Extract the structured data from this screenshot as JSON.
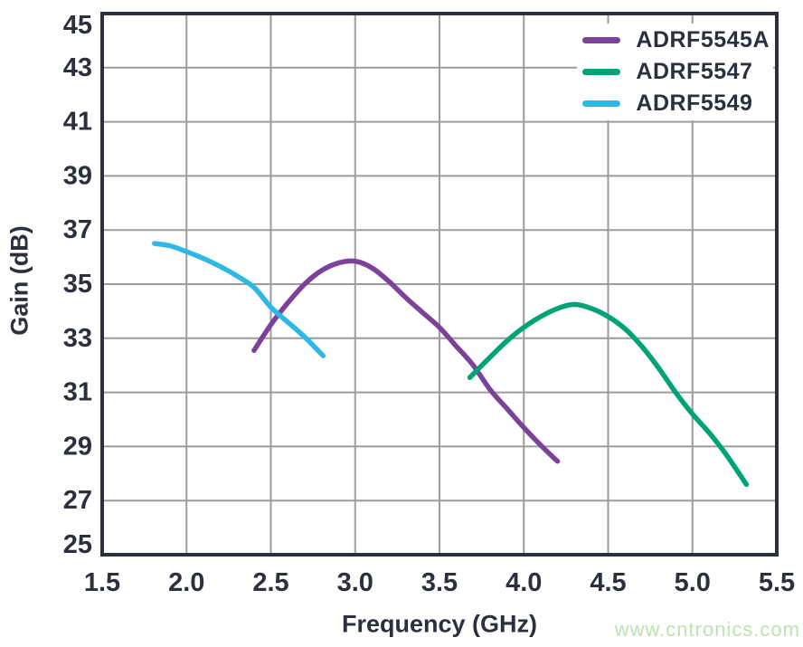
{
  "chart_data": {
    "type": "line",
    "xlabel": "Frequency (GHz)",
    "ylabel": "Gain (dB)",
    "xlim": [
      1.5,
      5.5
    ],
    "ylim": [
      25,
      45
    ],
    "xtick_labels": [
      "1.5",
      "2.0",
      "2.5",
      "3.0",
      "3.5",
      "4.0",
      "4.5",
      "5.0",
      "5.5"
    ],
    "ytick_labels": [
      "25",
      "27",
      "29",
      "31",
      "33",
      "35",
      "37",
      "39",
      "41",
      "43",
      "45"
    ],
    "grid": true,
    "legend_position": "top-right",
    "series": [
      {
        "name": "ADRF5545A",
        "color": "#7c4199",
        "points": [
          [
            2.4,
            32.55
          ],
          [
            2.5,
            33.5
          ],
          [
            2.6,
            34.3
          ],
          [
            2.7,
            35.0
          ],
          [
            2.8,
            35.5
          ],
          [
            2.9,
            35.78
          ],
          [
            3.0,
            35.85
          ],
          [
            3.1,
            35.6
          ],
          [
            3.2,
            35.1
          ],
          [
            3.3,
            34.5
          ],
          [
            3.4,
            33.95
          ],
          [
            3.5,
            33.4
          ],
          [
            3.6,
            32.7
          ],
          [
            3.7,
            32.0
          ],
          [
            3.8,
            31.1
          ],
          [
            3.9,
            30.4
          ],
          [
            4.0,
            29.7
          ],
          [
            4.1,
            29.05
          ],
          [
            4.2,
            28.45
          ]
        ]
      },
      {
        "name": "ADRF5547",
        "color": "#00a376",
        "points": [
          [
            3.68,
            31.55
          ],
          [
            3.8,
            32.3
          ],
          [
            3.9,
            32.9
          ],
          [
            4.0,
            33.4
          ],
          [
            4.1,
            33.8
          ],
          [
            4.2,
            34.1
          ],
          [
            4.3,
            34.25
          ],
          [
            4.4,
            34.1
          ],
          [
            4.5,
            33.8
          ],
          [
            4.6,
            33.35
          ],
          [
            4.7,
            32.7
          ],
          [
            4.8,
            31.9
          ],
          [
            4.9,
            31.0
          ],
          [
            5.0,
            30.2
          ],
          [
            5.1,
            29.5
          ],
          [
            5.2,
            28.7
          ],
          [
            5.32,
            27.6
          ]
        ]
      },
      {
        "name": "ADRF5549",
        "color": "#2eb8e4",
        "points": [
          [
            1.81,
            36.5
          ],
          [
            1.9,
            36.42
          ],
          [
            2.0,
            36.2
          ],
          [
            2.1,
            35.95
          ],
          [
            2.2,
            35.65
          ],
          [
            2.3,
            35.3
          ],
          [
            2.4,
            34.88
          ],
          [
            2.5,
            34.15
          ],
          [
            2.6,
            33.6
          ],
          [
            2.7,
            33.05
          ],
          [
            2.81,
            32.35
          ]
        ]
      }
    ]
  },
  "watermark": {
    "text": "www.cntronics.com",
    "color": "#bce3b0"
  },
  "colors": {
    "axis_text": "#2b303c",
    "frame": "#2b303c",
    "grid": "#9c9c9c",
    "background": "#ffffff"
  }
}
